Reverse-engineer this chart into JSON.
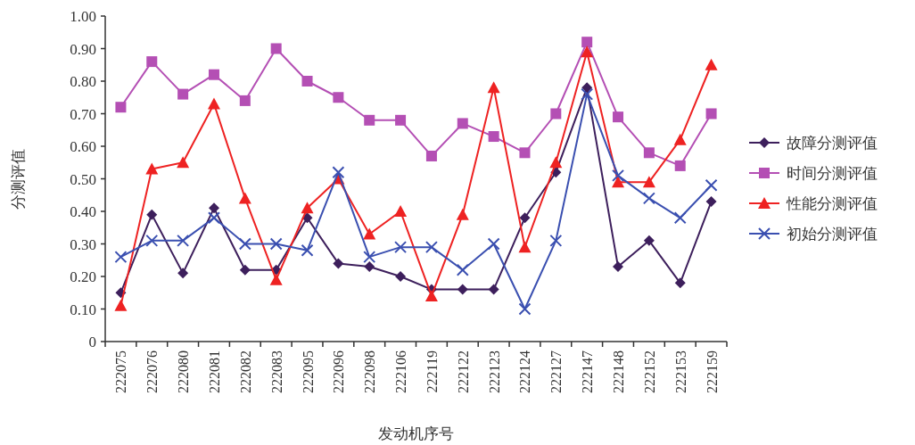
{
  "chart_data": {
    "type": "line",
    "xlabel": "发动机序号",
    "ylabel": "分测评值",
    "legend": "right",
    "line_style": "solid",
    "categories": [
      "222075",
      "222076",
      "222080",
      "222081",
      "222082",
      "222083",
      "222095",
      "222096",
      "222098",
      "222106",
      "222119",
      "222122",
      "222123",
      "222124",
      "222127",
      "222147",
      "222148",
      "222152",
      "222153",
      "222159"
    ],
    "ylim": [
      0,
      1
    ],
    "yticks": [
      0,
      {
        "value": 0.1,
        "label": "0.10"
      },
      {
        "value": 0.2,
        "label": "0.20"
      },
      {
        "value": 0.3,
        "label": "0.30"
      },
      {
        "value": 0.4,
        "label": "0.40"
      },
      {
        "value": 0.5,
        "label": "0.50"
      },
      {
        "value": 0.6,
        "label": "0.60"
      },
      {
        "value": 0.7,
        "label": "0.70"
      },
      {
        "value": 0.8,
        "label": "0.80"
      },
      {
        "value": 0.9,
        "label": "0.90"
      },
      {
        "value": 1,
        "label": "1.00"
      }
    ],
    "series": [
      {
        "name": "故障分测评值",
        "color": "#3d1f5c",
        "marker": "diamond",
        "values": [
          0.15,
          0.39,
          0.21,
          0.41,
          0.22,
          0.22,
          0.38,
          0.24,
          0.23,
          0.2,
          0.16,
          0.16,
          0.16,
          0.38,
          0.52,
          0.78,
          0.23,
          0.31,
          0.18,
          0.43
        ]
      },
      {
        "name": "时间分测评值",
        "color": "#b44fb4",
        "marker": "square",
        "values": [
          0.72,
          0.86,
          0.76,
          0.82,
          0.74,
          0.9,
          0.8,
          0.75,
          0.68,
          0.68,
          0.57,
          0.67,
          0.63,
          0.58,
          0.7,
          0.92,
          0.69,
          0.58,
          0.54,
          0.7
        ]
      },
      {
        "name": "性能分测评值",
        "color": "#ee2222",
        "marker": "triangle",
        "values": [
          0.11,
          0.53,
          0.55,
          0.73,
          0.44,
          0.19,
          0.41,
          0.5,
          0.33,
          0.4,
          0.14,
          0.39,
          0.78,
          0.29,
          0.55,
          0.89,
          0.49,
          0.49,
          0.62,
          0.85
        ]
      },
      {
        "name": "初始分测评值",
        "color": "#3a4fb0",
        "marker": "cross",
        "values": [
          0.26,
          0.31,
          0.31,
          0.38,
          0.3,
          0.3,
          0.28,
          0.52,
          0.26,
          0.29,
          0.29,
          0.22,
          0.3,
          0.1,
          0.31,
          0.76,
          0.51,
          0.44,
          0.38,
          0.48
        ]
      }
    ]
  }
}
